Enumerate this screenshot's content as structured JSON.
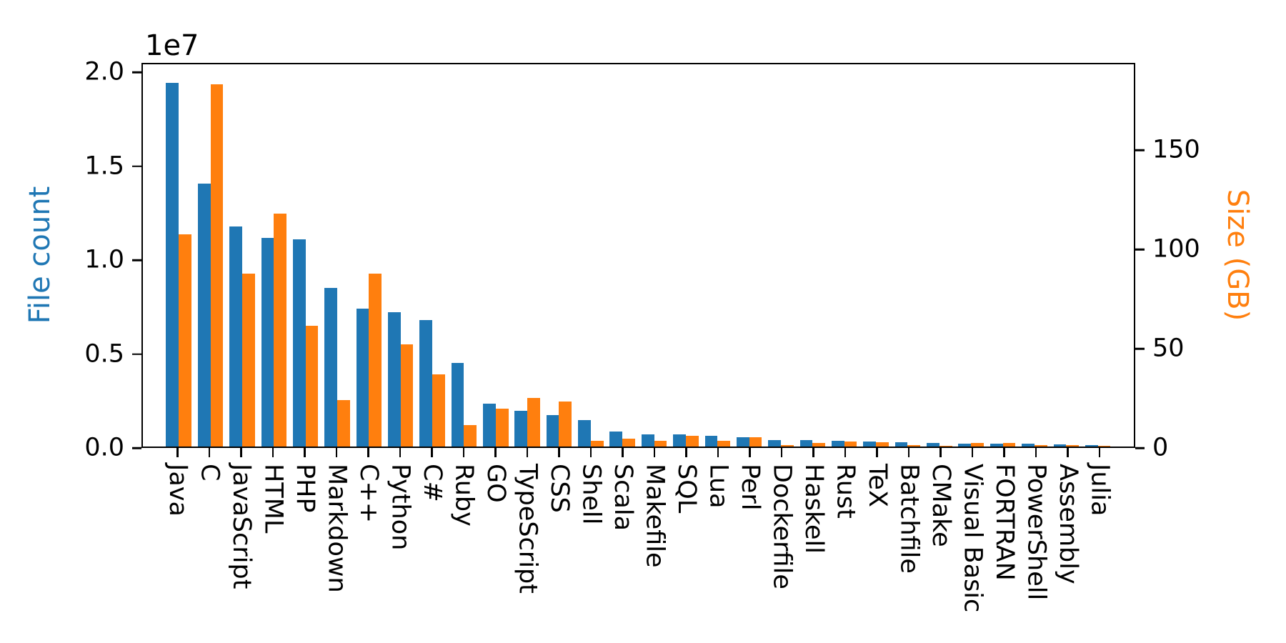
{
  "chart_data": {
    "type": "bar",
    "title": "",
    "dual_axis": true,
    "grid": false,
    "legend": null,
    "categories": [
      "Java",
      "C",
      "JavaScript",
      "HTML",
      "PHP",
      "Markdown",
      "C++",
      "Python",
      "C#",
      "Ruby",
      "GO",
      "TypeScript",
      "CSS",
      "Shell",
      "Scala",
      "Makefile",
      "SQL",
      "Lua",
      "Perl",
      "Dockerfile",
      "Haskell",
      "Rust",
      "TeX",
      "Batchfile",
      "CMake",
      "Visual Basic",
      "FORTRAN",
      "PowerShell",
      "Assembly",
      "Julia"
    ],
    "series": [
      {
        "name": "File count",
        "axis": "left",
        "color": "#1f77b4",
        "values": [
          19500000,
          14100000,
          11800000,
          11200000,
          11100000,
          8500000,
          7400000,
          7200000,
          6800000,
          4500000,
          2300000,
          1900000,
          1700000,
          1400000,
          800000,
          660000,
          640000,
          580000,
          480000,
          340000,
          330000,
          320000,
          250000,
          240000,
          190000,
          160000,
          150000,
          140000,
          100000,
          60000
        ]
      },
      {
        "name": "Size (GB)",
        "axis": "right",
        "color": "#ff7f0e",
        "values": [
          107.7,
          183.8,
          87.8,
          118.1,
          61.4,
          23.6,
          87.7,
          52.0,
          36.8,
          10.9,
          19.3,
          24.6,
          22.7,
          3.0,
          3.9,
          2.9,
          5.5,
          2.8,
          4.7,
          0.6,
          1.9,
          2.7,
          2.2,
          0.7,
          0.5,
          1.9,
          1.8,
          0.7,
          0.9,
          0.3
        ]
      }
    ],
    "left_axis": {
      "label": "File count",
      "color": "#1f77b4",
      "offset_label": "1e7",
      "max": 20500000,
      "ticks": [
        {
          "label": "0.0",
          "value": 0
        },
        {
          "label": "0.5",
          "value": 5000000
        },
        {
          "label": "1.0",
          "value": 10000000
        },
        {
          "label": "1.5",
          "value": 15000000
        },
        {
          "label": "2.0",
          "value": 20000000
        }
      ]
    },
    "right_axis": {
      "label": "Size (GB)",
      "color": "#ff7f0e",
      "max": 194,
      "ticks": [
        {
          "label": "0",
          "value": 0
        },
        {
          "label": "50",
          "value": 50
        },
        {
          "label": "100",
          "value": 100
        },
        {
          "label": "150",
          "value": 150
        }
      ]
    }
  }
}
